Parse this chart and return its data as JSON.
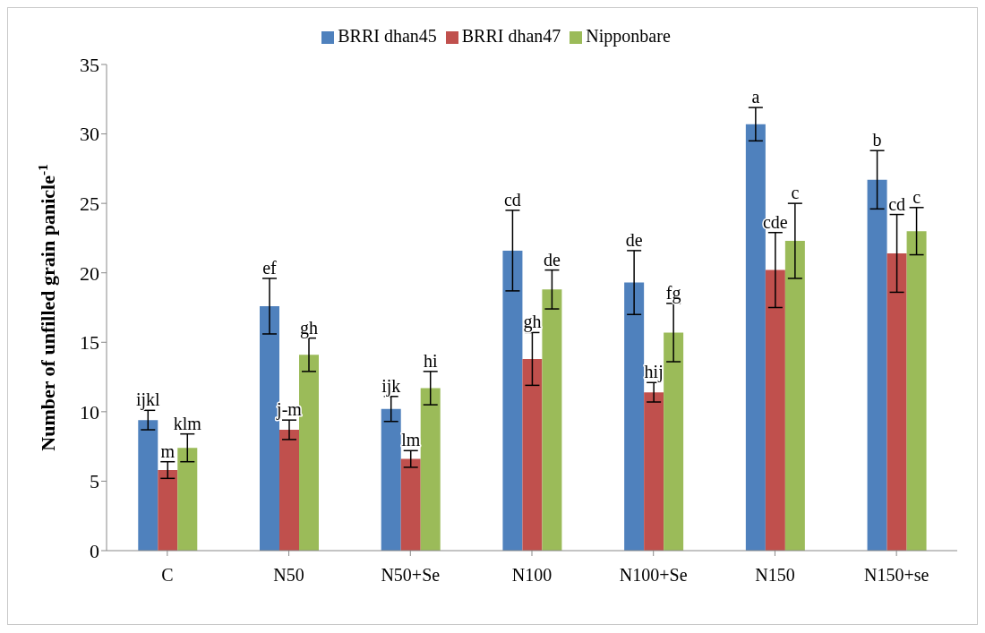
{
  "chart_data": {
    "type": "bar",
    "ylabel": "Number of unfilled grain panicle$^{-1}$",
    "categories": [
      "C",
      "N50",
      "N50+Se",
      "N100",
      "N100+Se",
      "N150",
      "N150+se"
    ],
    "series": [
      {
        "name": "BRRI dhan45",
        "color": "#4f81bd",
        "values": [
          9.4,
          17.6,
          10.2,
          21.6,
          19.3,
          30.7,
          26.7
        ],
        "errors": [
          0.7,
          2.0,
          0.9,
          2.9,
          2.3,
          1.2,
          2.1
        ],
        "value_labels": [
          "ijkl",
          "ef",
          "ijk",
          "cd",
          "de",
          "a",
          "b"
        ]
      },
      {
        "name": "BRRI dhan47",
        "color": "#c0504d",
        "values": [
          5.8,
          8.7,
          6.6,
          13.8,
          11.4,
          20.2,
          21.4
        ],
        "errors": [
          0.6,
          0.7,
          0.6,
          1.9,
          0.7,
          2.7,
          2.8
        ],
        "value_labels": [
          "m",
          "j-m",
          "lm",
          "gh",
          "hij",
          "cde",
          "cd"
        ]
      },
      {
        "name": "Nipponbare",
        "color": "#9bbb59",
        "values": [
          7.4,
          14.1,
          11.7,
          18.8,
          15.7,
          22.3,
          23.0
        ],
        "errors": [
          1.0,
          1.2,
          1.2,
          1.4,
          2.1,
          2.7,
          1.7
        ],
        "value_labels": [
          "klm",
          "gh",
          "hi",
          "de",
          "fg",
          "c",
          "c"
        ]
      }
    ],
    "ylim": [
      0,
      35
    ],
    "yticks": [
      0,
      5,
      10,
      15,
      20,
      25,
      30,
      35
    ],
    "grid": false,
    "legend": "top"
  }
}
